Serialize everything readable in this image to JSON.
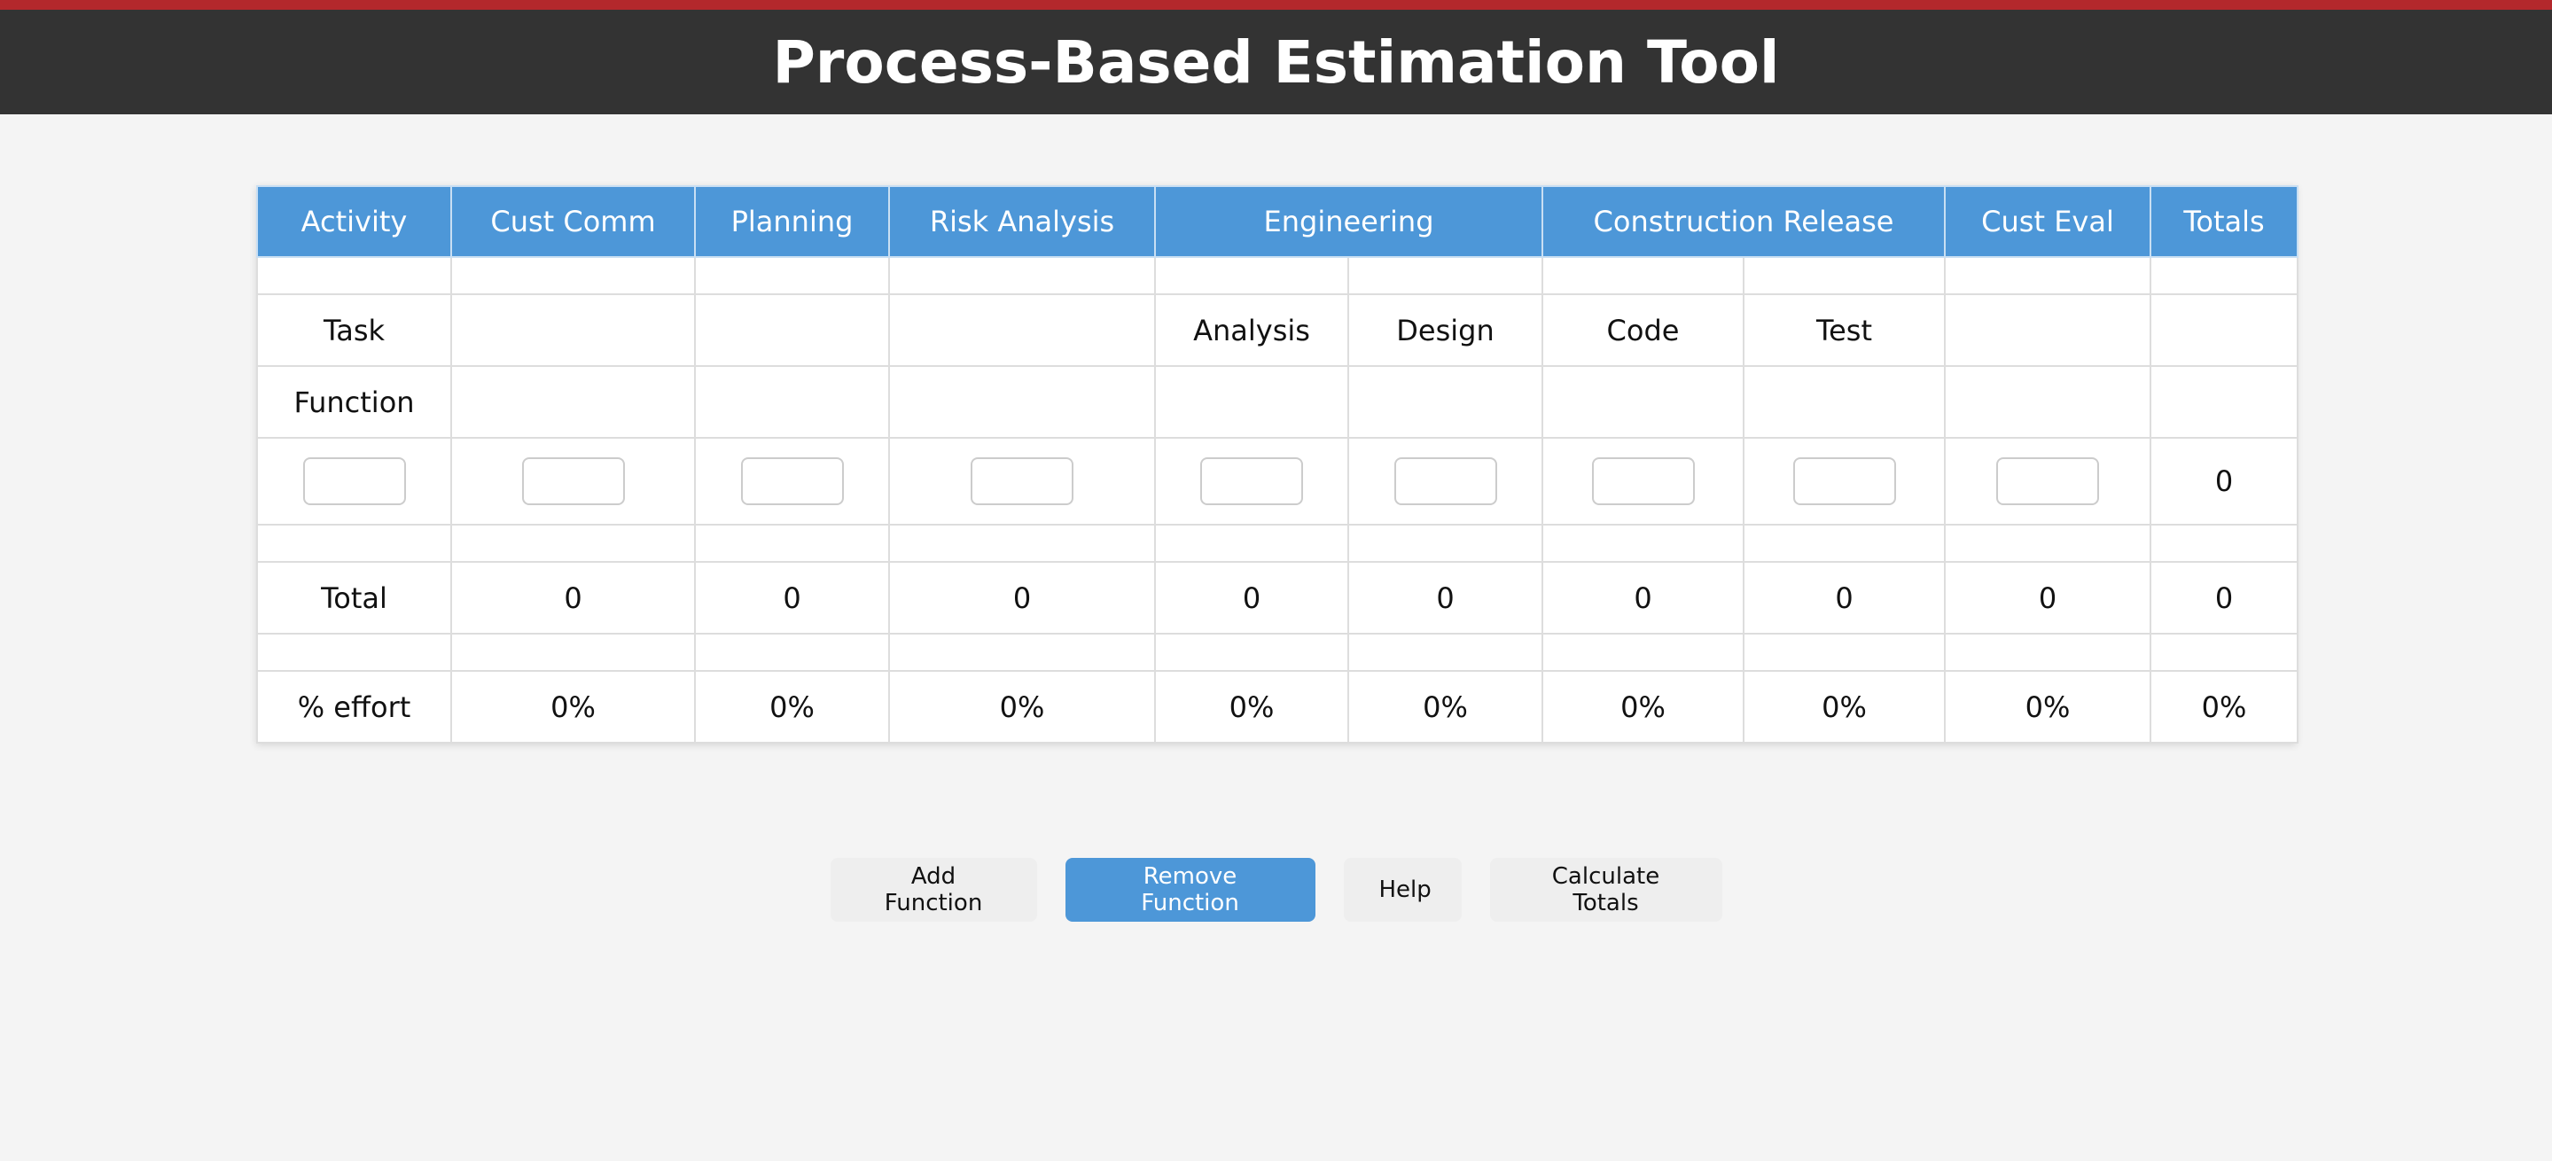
{
  "header": {
    "title": "Process-Based Estimation Tool"
  },
  "colors": {
    "accent_bar": "#b3282c",
    "header_bg": "#333333",
    "table_header_bg": "#4d97d8",
    "primary_button": "#4d97d8"
  },
  "table": {
    "headers": {
      "activity": "Activity",
      "cust_comm": "Cust Comm",
      "planning": "Planning",
      "risk_analysis": "Risk Analysis",
      "engineering": "Engineering",
      "construction_release": "Construction Release",
      "cust_eval": "Cust Eval",
      "totals": "Totals"
    },
    "task_row": {
      "label": "Task",
      "analysis": "Analysis",
      "design": "Design",
      "code": "Code",
      "test": "Test"
    },
    "function_row": {
      "label": "Function"
    },
    "input_row": {
      "total": "0"
    },
    "total_row": {
      "label": "Total",
      "values": [
        "0",
        "0",
        "0",
        "0",
        "0",
        "0",
        "0",
        "0",
        "0"
      ]
    },
    "effort_row": {
      "label": "% effort",
      "values": [
        "0%",
        "0%",
        "0%",
        "0%",
        "0%",
        "0%",
        "0%",
        "0%",
        "0%"
      ]
    }
  },
  "buttons": {
    "add_function": "Add Function",
    "remove_function": "Remove Function",
    "help": "Help",
    "calculate_totals": "Calculate Totals"
  }
}
